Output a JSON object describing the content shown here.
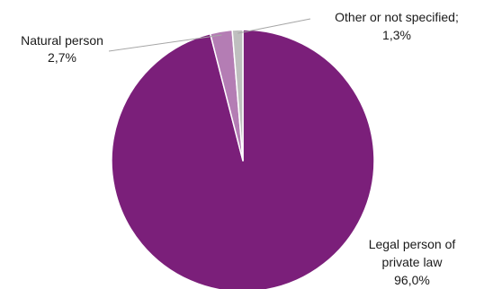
{
  "chart_data": {
    "type": "pie",
    "title": "",
    "slices": [
      {
        "label_lines": [
          "Legal person of",
          "private law"
        ],
        "value": 96.0,
        "value_label": "96,0%",
        "color": "#7b1f7a"
      },
      {
        "label_lines": [
          "Natural person"
        ],
        "value": 2.7,
        "value_label": "2,7%",
        "color": "#b47db4"
      },
      {
        "label_lines": [
          "Other or not specified;"
        ],
        "value": 1.3,
        "value_label": "1,3%",
        "color": "#bfbfbf"
      }
    ],
    "start": "12 o'clock",
    "direction": "clockwise",
    "slice_border_color": "#ffffff",
    "leader_line_color": "#a6a6a6",
    "legend": "none"
  }
}
